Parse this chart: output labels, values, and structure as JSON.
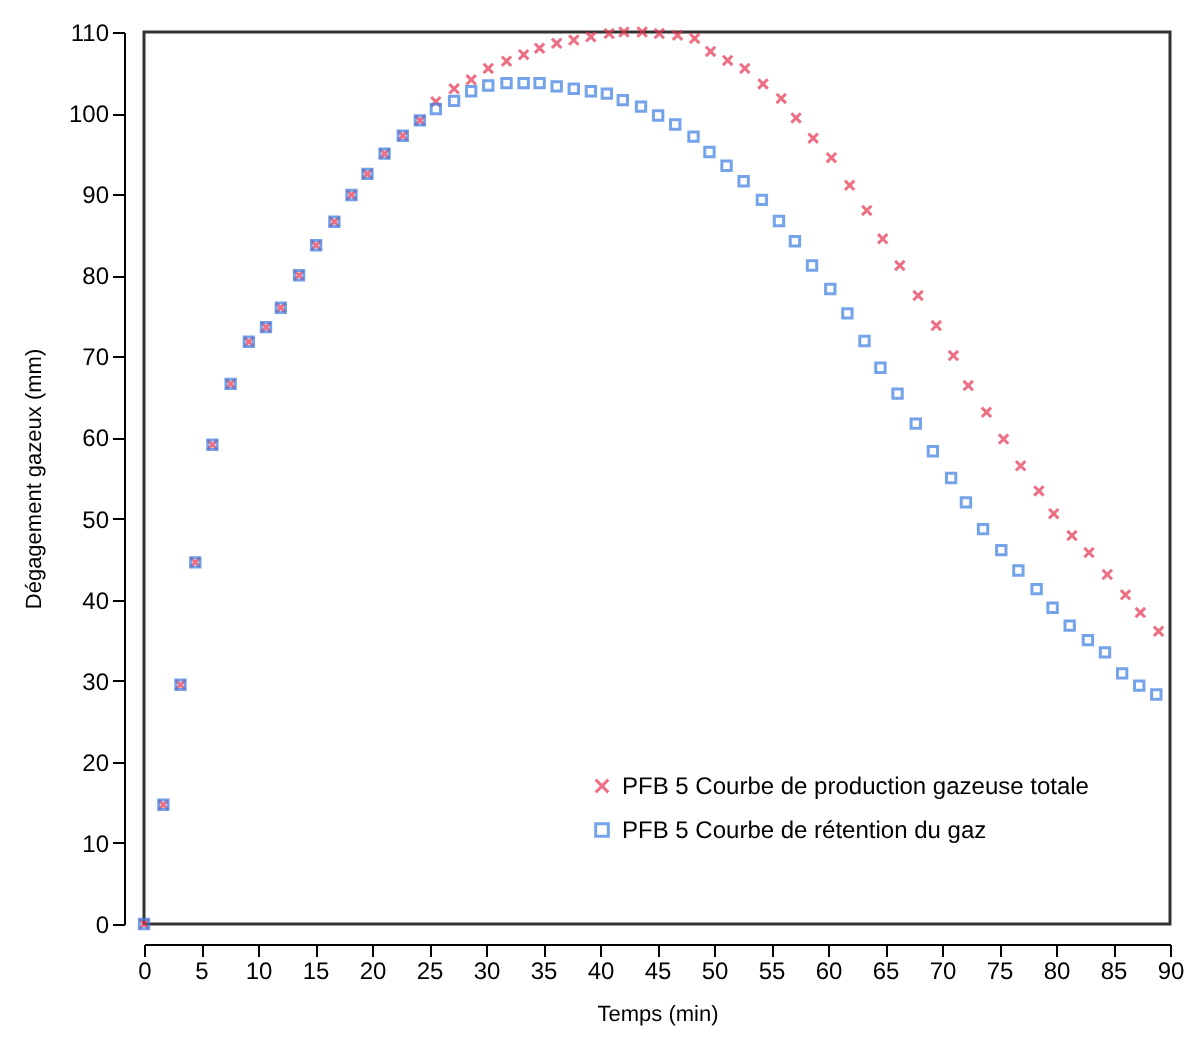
{
  "chart_data": {
    "type": "scatter",
    "xlabel": "Temps (min)",
    "ylabel": "Dégagement gazeux (mm)",
    "xlim": [
      0,
      90
    ],
    "ylim": [
      0,
      110
    ],
    "xticks": [
      0,
      5,
      10,
      15,
      20,
      25,
      30,
      35,
      40,
      45,
      50,
      55,
      60,
      65,
      70,
      75,
      80,
      85,
      90
    ],
    "yticks": [
      0,
      10,
      20,
      30,
      40,
      50,
      60,
      70,
      80,
      90,
      100,
      110
    ],
    "grid": false,
    "legend": "bottom right",
    "series": [
      {
        "name": "PFB 5 Courbe de production gazeuse totale",
        "color": "#e8334f",
        "marker": "cross",
        "x": [
          0,
          1.7,
          3.2,
          4.5,
          6.0,
          7.6,
          9.2,
          10.7,
          12.0,
          13.6,
          15.1,
          16.7,
          18.2,
          19.6,
          21.1,
          22.7,
          24.2,
          25.6,
          27.2,
          28.7,
          30.2,
          31.8,
          33.3,
          34.7,
          36.2,
          37.7,
          39.2,
          40.8,
          42.1,
          43.7,
          45.2,
          46.8,
          48.3,
          49.7,
          51.2,
          52.7,
          54.3,
          55.9,
          57.2,
          58.7,
          60.3,
          61.9,
          63.4,
          64.8,
          66.3,
          67.9,
          69.5,
          71.0,
          72.3,
          73.9,
          75.4,
          76.9,
          78.5,
          79.8,
          81.4,
          82.9,
          84.5,
          86.1,
          87.4,
          89.0
        ],
        "values": [
          0,
          14.7,
          29.5,
          44.6,
          59.1,
          66.6,
          71.8,
          73.6,
          76.0,
          80.0,
          83.7,
          86.6,
          89.9,
          92.5,
          95.0,
          97.2,
          99.1,
          101.4,
          103.0,
          104.1,
          105.5,
          106.4,
          107.2,
          108.0,
          108.6,
          109.0,
          109.4,
          109.8,
          110.0,
          110.0,
          109.8,
          109.6,
          109.2,
          107.6,
          106.5,
          105.5,
          103.6,
          101.8,
          99.4,
          96.9,
          94.5,
          91.1,
          88.0,
          84.5,
          81.2,
          77.5,
          73.8,
          70.1,
          66.4,
          63.1,
          59.8,
          56.5,
          53.4,
          50.6,
          47.9,
          45.8,
          43.1,
          40.6,
          38.4,
          36.1
        ]
      },
      {
        "name": "PFB 5 Courbe de rétention du gaz",
        "color": "#3a7de0",
        "marker": "square",
        "x": [
          0,
          1.7,
          3.2,
          4.5,
          6.0,
          7.6,
          9.2,
          10.7,
          12.0,
          13.6,
          15.1,
          16.7,
          18.2,
          19.6,
          21.1,
          22.7,
          24.2,
          25.6,
          27.2,
          28.7,
          30.2,
          31.8,
          33.3,
          34.7,
          36.2,
          37.7,
          39.2,
          40.6,
          42.0,
          43.6,
          45.1,
          46.6,
          48.2,
          49.6,
          51.1,
          52.6,
          54.2,
          55.7,
          57.1,
          58.6,
          60.2,
          61.7,
          63.2,
          64.6,
          66.1,
          67.7,
          69.2,
          70.8,
          72.1,
          73.6,
          75.2,
          76.7,
          78.3,
          79.7,
          81.2,
          82.8,
          84.3,
          85.8,
          87.3,
          88.8
        ],
        "values": [
          0,
          14.7,
          29.5,
          44.6,
          59.1,
          66.6,
          71.8,
          73.6,
          76.0,
          80.0,
          83.7,
          86.6,
          89.9,
          92.5,
          95.0,
          97.2,
          99.1,
          100.5,
          101.5,
          102.7,
          103.4,
          103.7,
          103.7,
          103.7,
          103.3,
          103.0,
          102.7,
          102.4,
          101.6,
          100.8,
          99.7,
          98.6,
          97.1,
          95.2,
          93.5,
          91.6,
          89.3,
          86.7,
          84.2,
          81.2,
          78.3,
          75.3,
          71.9,
          68.6,
          65.4,
          61.7,
          58.3,
          55.0,
          52.0,
          48.7,
          46.1,
          43.6,
          41.3,
          39.0,
          36.8,
          35.0,
          33.5,
          30.9,
          29.4,
          28.3
        ]
      }
    ]
  }
}
